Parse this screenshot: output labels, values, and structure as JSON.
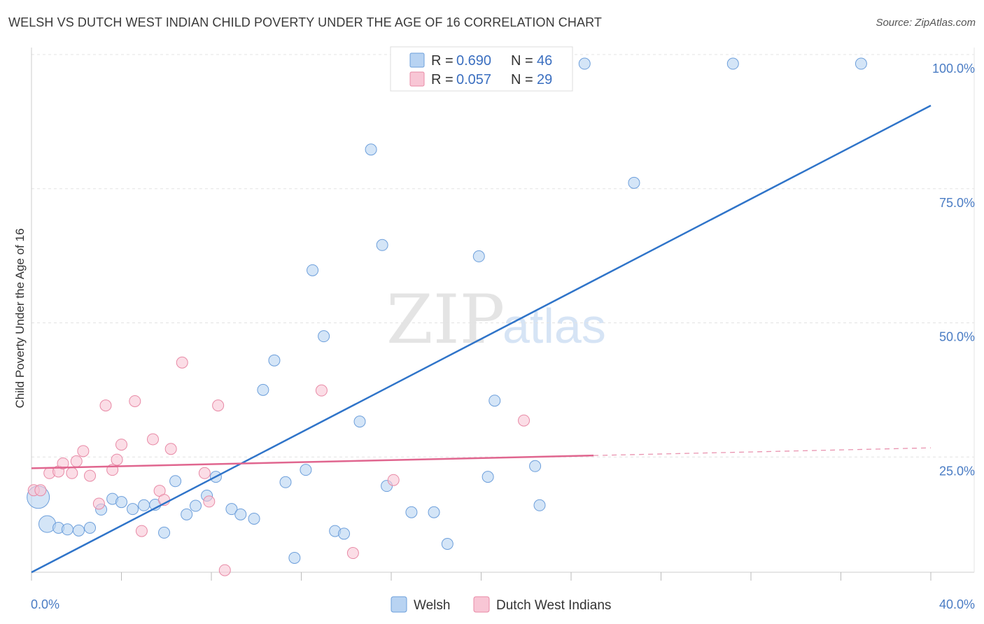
{
  "title": "WELSH VS DUTCH WEST INDIAN CHILD POVERTY UNDER THE AGE OF 16 CORRELATION CHART",
  "source": "Source: ZipAtlas.com",
  "watermark": {
    "zip": "ZIP",
    "atlas": "atlas"
  },
  "colors": {
    "welsh_fill": "#b8d3f2",
    "welsh_stroke": "#6d9fdb",
    "welsh_line": "#2f74c9",
    "dutch_fill": "#f8c6d5",
    "dutch_stroke": "#e88aa6",
    "dutch_line": "#e0668f",
    "grid": "#e3e3e3",
    "tick_text": "#4a7cc4"
  },
  "legend": {
    "rows": [
      {
        "r_label": "R = ",
        "r_value": "0.690",
        "n_label": "N = ",
        "n_value": "46"
      },
      {
        "r_label": "R = ",
        "r_value": "0.057",
        "n_label": "N = ",
        "n_value": "29"
      }
    ]
  },
  "chart_data": {
    "type": "scatter",
    "title": "WELSH VS DUTCH WEST INDIAN CHILD POVERTY UNDER THE AGE OF 16 CORRELATION CHART",
    "xlabel": "",
    "ylabel": "Child Poverty Under the Age of 16",
    "xlim": [
      0,
      40
    ],
    "ylim": [
      0,
      100
    ],
    "x_tick_labels": [
      "0.0%",
      "40.0%"
    ],
    "y_ticks": [
      25,
      50,
      75,
      100
    ],
    "y_tick_labels": [
      "25.0%",
      "50.0%",
      "75.0%",
      "100.0%"
    ],
    "grid": true,
    "legend_placement": "top-center",
    "series": [
      {
        "name": "Welsh",
        "r": 0.69,
        "n": 46,
        "trend": {
          "x": [
            0,
            40
          ],
          "y": [
            3.5,
            90.5
          ],
          "dashed_from_x": null
        },
        "points": [
          {
            "x": 0.3,
            "y": 17.5,
            "s": 3
          },
          {
            "x": 0.7,
            "y": 12.5,
            "s": 2
          },
          {
            "x": 1.2,
            "y": 11.8,
            "s": 1
          },
          {
            "x": 1.6,
            "y": 11.5,
            "s": 1
          },
          {
            "x": 2.1,
            "y": 11.3,
            "s": 1
          },
          {
            "x": 2.6,
            "y": 11.8,
            "s": 1
          },
          {
            "x": 3.1,
            "y": 15.2,
            "s": 1
          },
          {
            "x": 3.6,
            "y": 17.2,
            "s": 1
          },
          {
            "x": 4.0,
            "y": 16.6,
            "s": 1
          },
          {
            "x": 4.5,
            "y": 15.3,
            "s": 1
          },
          {
            "x": 5.0,
            "y": 16.0,
            "s": 1
          },
          {
            "x": 5.5,
            "y": 16.1,
            "s": 1
          },
          {
            "x": 5.9,
            "y": 10.9,
            "s": 1
          },
          {
            "x": 6.4,
            "y": 20.5,
            "s": 1
          },
          {
            "x": 6.9,
            "y": 14.3,
            "s": 1
          },
          {
            "x": 7.3,
            "y": 15.9,
            "s": 1
          },
          {
            "x": 7.8,
            "y": 17.8,
            "s": 1
          },
          {
            "x": 8.2,
            "y": 21.3,
            "s": 1
          },
          {
            "x": 8.9,
            "y": 15.3,
            "s": 1
          },
          {
            "x": 9.3,
            "y": 14.3,
            "s": 1
          },
          {
            "x": 9.9,
            "y": 13.5,
            "s": 1
          },
          {
            "x": 10.3,
            "y": 37.5,
            "s": 1
          },
          {
            "x": 10.8,
            "y": 43.0,
            "s": 1
          },
          {
            "x": 11.3,
            "y": 20.3,
            "s": 1
          },
          {
            "x": 11.7,
            "y": 6.2,
            "s": 1
          },
          {
            "x": 12.2,
            "y": 22.6,
            "s": 1
          },
          {
            "x": 12.5,
            "y": 59.8,
            "s": 1
          },
          {
            "x": 13.0,
            "y": 47.5,
            "s": 1
          },
          {
            "x": 13.5,
            "y": 11.2,
            "s": 1
          },
          {
            "x": 13.9,
            "y": 10.7,
            "s": 1
          },
          {
            "x": 14.6,
            "y": 31.6,
            "s": 1
          },
          {
            "x": 15.1,
            "y": 82.3,
            "s": 1
          },
          {
            "x": 15.6,
            "y": 64.5,
            "s": 1
          },
          {
            "x": 15.8,
            "y": 19.6,
            "s": 1
          },
          {
            "x": 16.9,
            "y": 14.7,
            "s": 1
          },
          {
            "x": 17.9,
            "y": 14.7,
            "s": 1
          },
          {
            "x": 18.5,
            "y": 8.8,
            "s": 1
          },
          {
            "x": 19.9,
            "y": 62.4,
            "s": 1
          },
          {
            "x": 20.3,
            "y": 21.3,
            "s": 1
          },
          {
            "x": 20.6,
            "y": 35.5,
            "s": 1
          },
          {
            "x": 22.4,
            "y": 23.3,
            "s": 1
          },
          {
            "x": 22.6,
            "y": 16.0,
            "s": 1
          },
          {
            "x": 24.6,
            "y": 98.3,
            "s": 1
          },
          {
            "x": 26.8,
            "y": 76.1,
            "s": 1
          },
          {
            "x": 31.2,
            "y": 98.3,
            "s": 1
          },
          {
            "x": 36.9,
            "y": 98.3,
            "s": 1
          }
        ]
      },
      {
        "name": "Dutch West Indians",
        "r": 0.057,
        "n": 29,
        "trend": {
          "x": [
            0,
            40
          ],
          "y": [
            22.9,
            26.7
          ],
          "dashed_from_x": 25
        },
        "points": [
          {
            "x": 0.1,
            "y": 18.8,
            "s": 1
          },
          {
            "x": 0.4,
            "y": 18.8,
            "s": 1
          },
          {
            "x": 0.8,
            "y": 22.0,
            "s": 1
          },
          {
            "x": 1.2,
            "y": 22.3,
            "s": 1
          },
          {
            "x": 1.4,
            "y": 23.8,
            "s": 1
          },
          {
            "x": 1.8,
            "y": 22.0,
            "s": 1
          },
          {
            "x": 2.0,
            "y": 24.2,
            "s": 1
          },
          {
            "x": 2.3,
            "y": 26.1,
            "s": 1
          },
          {
            "x": 2.6,
            "y": 21.5,
            "s": 1
          },
          {
            "x": 3.0,
            "y": 16.3,
            "s": 1
          },
          {
            "x": 3.3,
            "y": 34.6,
            "s": 1
          },
          {
            "x": 3.6,
            "y": 22.6,
            "s": 1
          },
          {
            "x": 3.8,
            "y": 24.5,
            "s": 1
          },
          {
            "x": 4.0,
            "y": 27.3,
            "s": 1
          },
          {
            "x": 4.6,
            "y": 35.4,
            "s": 1
          },
          {
            "x": 4.9,
            "y": 11.2,
            "s": 1
          },
          {
            "x": 5.4,
            "y": 28.3,
            "s": 1
          },
          {
            "x": 5.7,
            "y": 18.7,
            "s": 1
          },
          {
            "x": 5.9,
            "y": 17.0,
            "s": 1
          },
          {
            "x": 6.2,
            "y": 26.5,
            "s": 1
          },
          {
            "x": 6.7,
            "y": 42.6,
            "s": 1
          },
          {
            "x": 7.7,
            "y": 22.0,
            "s": 1
          },
          {
            "x": 7.9,
            "y": 16.7,
            "s": 1
          },
          {
            "x": 8.3,
            "y": 34.6,
            "s": 1
          },
          {
            "x": 8.6,
            "y": 3.9,
            "s": 1
          },
          {
            "x": 12.9,
            "y": 37.4,
            "s": 1
          },
          {
            "x": 14.3,
            "y": 7.1,
            "s": 1
          },
          {
            "x": 16.1,
            "y": 20.7,
            "s": 1
          },
          {
            "x": 21.9,
            "y": 31.8,
            "s": 1
          }
        ]
      }
    ]
  }
}
